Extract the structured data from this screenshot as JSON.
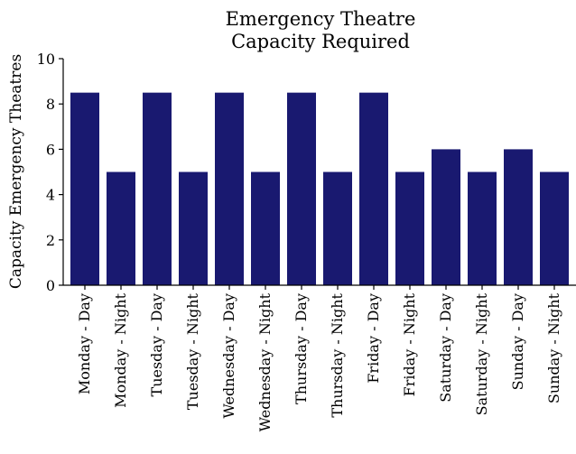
{
  "chart_data": {
    "type": "bar",
    "title": [
      "Emergency Theatre",
      "Capacity Required"
    ],
    "ylabel": "Capacity Emergency Theatres",
    "xlabel": "",
    "ylim": [
      0,
      10
    ],
    "yticks": [
      0,
      2,
      4,
      6,
      8,
      10
    ],
    "grid": false,
    "categories": [
      "Monday - Day",
      "Monday - Night",
      "Tuesday - Day",
      "Tuesday - Night",
      "Wednesday - Day",
      "Wednesday - Night",
      "Thursday - Day",
      "Thursday - Night",
      "Friday - Day",
      "Friday - Night",
      "Saturday - Day",
      "Saturday - Night",
      "Sunday - Day",
      "Sunday - Night"
    ],
    "values": [
      8.5,
      5,
      8.5,
      5,
      8.5,
      5,
      8.5,
      5,
      8.5,
      5,
      6,
      5,
      6,
      5
    ],
    "bar_color": "#191970"
  }
}
